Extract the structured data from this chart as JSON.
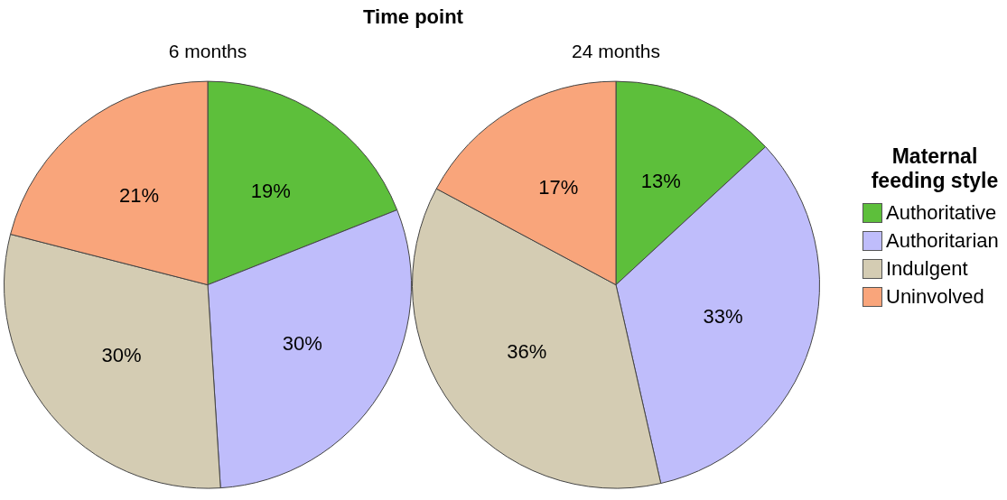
{
  "chart_data": [
    {
      "type": "pie",
      "title": "6 months",
      "annotations": [
        "Time point"
      ],
      "legend_title": "Maternal feeding style",
      "categories": [
        "Authoritative",
        "Authoritarian",
        "Indulgent",
        "Uninvolved"
      ],
      "values": [
        19,
        30,
        30,
        21
      ],
      "value_labels": [
        "19%",
        "30%",
        "30%",
        "21%"
      ],
      "colors": [
        "#5dbf3b",
        "#bfbdfb",
        "#d4ccb3",
        "#f9a57b"
      ],
      "legend": "right"
    },
    {
      "type": "pie",
      "title": "24 months",
      "categories": [
        null,
        null,
        null,
        null
      ],
      "values": [
        13,
        33,
        36,
        17
      ],
      "value_labels": [
        "13%",
        "33%",
        "36%",
        "17%"
      ],
      "colors": [
        "#5dbf3b",
        "#bfbdfb",
        "#d4ccb3",
        "#f9a57b"
      ],
      "legend": false
    }
  ]
}
